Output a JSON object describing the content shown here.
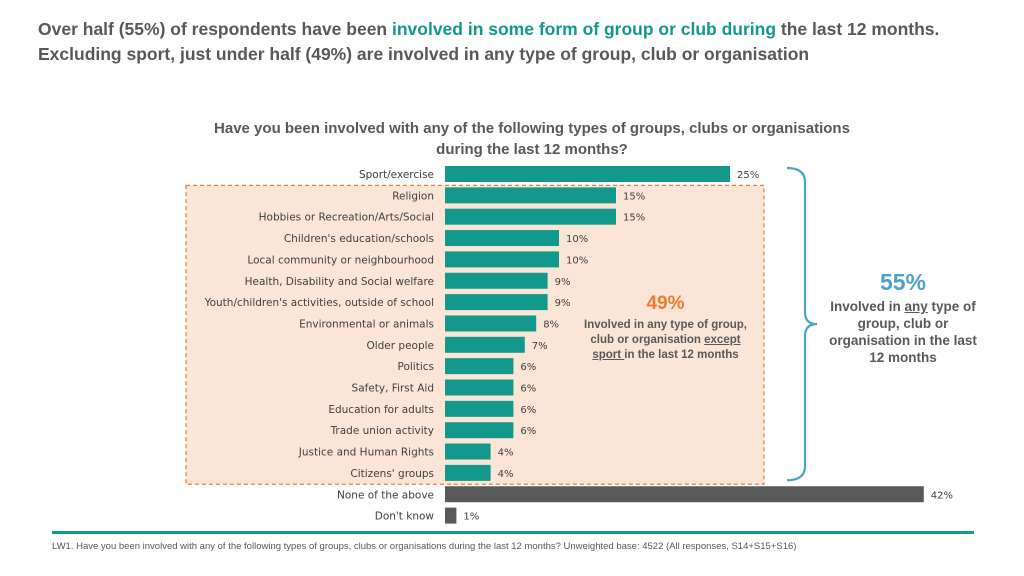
{
  "headline": {
    "part1": "Over half (55%) of respondents have been ",
    "highlight": "involved in some form of group or club during",
    "part2": " the last 12 months. Excluding sport, just under half (49%) are involved in any type of group, club or organisation"
  },
  "colors": {
    "teal": "#13988c",
    "grey": "#595959",
    "orange": "#ed7d31",
    "blue": "#4aa3c9",
    "highlight_fill": "#fbe5d6"
  },
  "chart_data": {
    "type": "bar",
    "orientation": "horizontal",
    "title": "Have you been involved with any of the following types of groups, clubs or organisations during the last 12 months?",
    "categories": [
      "Sport/exercise",
      "Religion",
      "Hobbies or Recreation/Arts/Social",
      "Children's education/schools",
      "Local community or neighbourhood",
      "Health, Disability and Social welfare",
      "Youth/children's activities, outside of school",
      "Environmental or animals",
      "Older people",
      "Politics",
      "Safety, First Aid",
      "Education for adults",
      "Trade union activity",
      "Justice and Human Rights",
      "Citizens' groups",
      "None of the above",
      "Don't know"
    ],
    "values": [
      25,
      15,
      15,
      10,
      10,
      9,
      9,
      8,
      7,
      6,
      6,
      6,
      6,
      4,
      4,
      42,
      1
    ],
    "value_labels": [
      "25%",
      "15%",
      "15%",
      "10%",
      "10%",
      "9%",
      "9%",
      "8%",
      "7%",
      "6%",
      "6%",
      "6%",
      "6%",
      "4%",
      "4%",
      "42%",
      "1%"
    ],
    "bar_colors": [
      "#13988c",
      "#13988c",
      "#13988c",
      "#13988c",
      "#13988c",
      "#13988c",
      "#13988c",
      "#13988c",
      "#13988c",
      "#13988c",
      "#13988c",
      "#13988c",
      "#13988c",
      "#13988c",
      "#13988c",
      "#595959",
      "#595959"
    ],
    "xlim": [
      0,
      42
    ],
    "gridlines": false
  },
  "annotation_49": {
    "value": "49%",
    "text1": "Involved in any type of group, club or organisation ",
    "underlined": "except sport ",
    "text2": "in the last 12 months"
  },
  "annotation_55": {
    "value": "55%",
    "text1": "Involved in ",
    "underlined": "any",
    "text2": " type of group, club or organisation in the last 12 months"
  },
  "footnote": "LW1. Have you been involved with any of the following types of groups, clubs or organisations during the last 12 months? Unweighted base: 4522 (All responses, S14+S15+S16)"
}
